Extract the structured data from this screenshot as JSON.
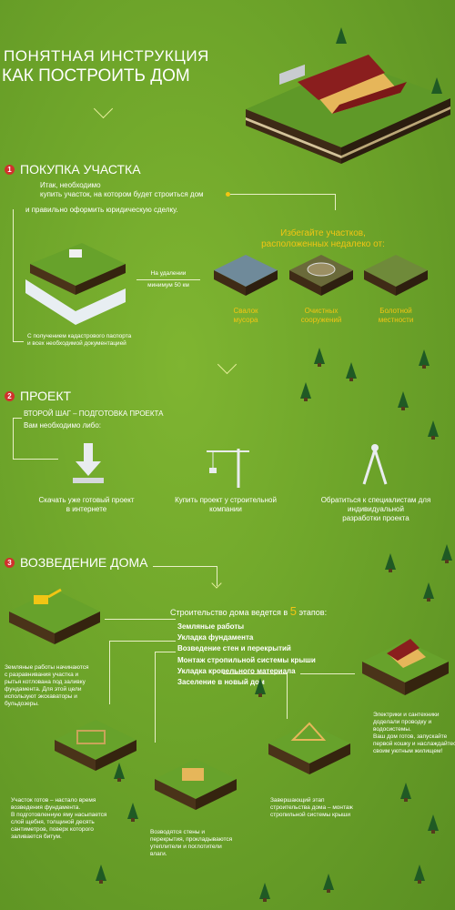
{
  "header": {
    "title_line1": "ПОНЯТНАЯ ИНСТРУКЦИЯ",
    "title_line2": "КАК ПОСТРОИТЬ ДОМ"
  },
  "sections": {
    "s1": {
      "number": "1",
      "title": "ПОКУПКА УЧАСТКА",
      "intro_line1": "Итак, необходимо",
      "intro_line2": "купить участок, на котором будет строиться дом",
      "intro_line3": "и правильно оформить юридическую сделку.",
      "distance_label1": "На удалении",
      "distance_label2": "минимум 50 км",
      "avoid_title_line1": "Избегайте участков,",
      "avoid_title_line2": "расположенных недалеко от:",
      "avoid_items": [
        {
          "line1": "Свалок",
          "line2": "мусора"
        },
        {
          "line1": "Очистных",
          "line2": "сооружений"
        },
        {
          "line1": "Болотной",
          "line2": "местности"
        }
      ],
      "passport_note_line1": "С получением кадастрового паспорта",
      "passport_note_line2": "и всех необходимой документацией"
    },
    "s2": {
      "number": "2",
      "title": "ПРОЕКТ",
      "subtitle": "ВТОРОЙ ШАГ – ПОДГОТОВКА ПРОЕКТА",
      "intro": "Вам необходимо либо:",
      "options": [
        {
          "line1": "Скачать уже готовый проект",
          "line2": "в интернете",
          "line3": ""
        },
        {
          "line1": "Купить проект у строительной",
          "line2": "компании",
          "line3": ""
        },
        {
          "line1": "Обратиться к специалистам для",
          "line2": "индивидуальной",
          "line3": "разработки проекта"
        }
      ]
    },
    "s3": {
      "number": "3",
      "title": "ВОЗВЕДЕНИЕ ДОМА",
      "stages_intro": "Строительство дома ведется в",
      "stages_count": "5",
      "stages_suffix": "этапов:",
      "stages": [
        "Земляные работы",
        "Укладка фундамента",
        "Возведение стен и перекрытий",
        "Монтаж стропильной системы крыши",
        "Укладка кровельного материала",
        "Заселение в новый дом"
      ],
      "notes": {
        "earthworks": [
          "Земляные работы начинаются",
          "с разравнивания участка и",
          "рытья котлована под заливку",
          "фундамента. Для этой цели",
          "используют экскаваторы и",
          "бульдозеры."
        ],
        "foundation": [
          "Участок готов – настало время",
          "возведения фундамента.",
          "В подготовленную яму насыпается",
          "слой щебня, толщиной десять",
          "сантиметров, поверх которого",
          "заливается битум."
        ],
        "walls": [
          "Возводятся стены и",
          "перекрытия, прокладываются",
          "утеплители и поглотители",
          "влаги."
        ],
        "roof": [
          "Завершающий этап",
          "строительства дома – монтаж",
          "стропильной системы крыши"
        ],
        "moving": [
          "Электрики и сантехники",
          "доделали проводку и",
          "водосистемы.",
          "Ваш дом готов, запускайте",
          "первой кошку и наслаждайтесь",
          "своим уютным жилищем!"
        ]
      }
    }
  },
  "colors": {
    "background": "#6ea52a",
    "accent_red": "#d0312d",
    "accent_yellow": "#f2c514",
    "text": "#ffffff"
  },
  "icons": [
    "chevron-down-icon",
    "download-icon",
    "crane-icon",
    "compass-icon"
  ]
}
